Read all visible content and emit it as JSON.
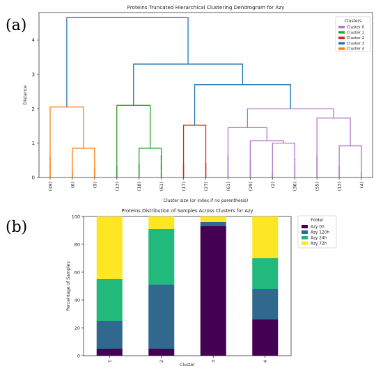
{
  "panel_labels": [
    "(a)",
    "(b)"
  ],
  "chart_data": [
    {
      "type": "dendrogram",
      "title": "Proteins Truncated Hierarchical Clustering Dendrogram for Azy",
      "xlabel": "Cluster size (or index if no parenthesis)",
      "ylabel": "Distance",
      "ylim": [
        0,
        4.8
      ],
      "yticks": [
        0,
        1,
        2,
        3,
        4
      ],
      "leaf_labels": [
        "(49)",
        "(6)",
        "(9)",
        "(13)",
        "(18)",
        "(61)",
        "(17)",
        "(27)",
        "(61)",
        "(29)",
        "(2)",
        "(36)",
        "(55)",
        "(13)",
        "(4)"
      ],
      "legend": {
        "title": "Clusters",
        "placement": "top-right",
        "entries": [
          {
            "name": "Cluster 0",
            "color": "#b277c8"
          },
          {
            "name": "Cluster 1",
            "color": "#2ca02c"
          },
          {
            "name": "Cluster 2",
            "color": "#d62728"
          },
          {
            "name": "Cluster 3",
            "color": "#1f77b4"
          },
          {
            "name": "Cluster 4",
            "color": "#ff7f0e"
          }
        ]
      },
      "links": [
        {
          "children": [
            1,
            2
          ],
          "height": 0.85,
          "cluster": "Cluster 4"
        },
        {
          "children": [
            0,
            "L0"
          ],
          "height": 2.05,
          "cluster": "Cluster 4"
        },
        {
          "children": [
            4,
            5
          ],
          "height": 0.85,
          "cluster": "Cluster 1"
        },
        {
          "children": [
            3,
            "L2"
          ],
          "height": 2.1,
          "cluster": "Cluster 1"
        },
        {
          "children": [
            6,
            7
          ],
          "height": 1.52,
          "cluster": "Cluster 2"
        },
        {
          "children": [
            10,
            11
          ],
          "height": 1.0,
          "cluster": "Cluster 0"
        },
        {
          "children": [
            9,
            "L5"
          ],
          "height": 1.07,
          "cluster": "Cluster 0"
        },
        {
          "children": [
            8,
            "L6"
          ],
          "height": 1.45,
          "cluster": "Cluster 0"
        },
        {
          "children": [
            13,
            14
          ],
          "height": 0.92,
          "cluster": "Cluster 0"
        },
        {
          "children": [
            12,
            "L8"
          ],
          "height": 1.73,
          "cluster": "Cluster 0"
        },
        {
          "children": [
            "L7",
            "L9"
          ],
          "height": 2.0,
          "cluster": "Cluster 0"
        },
        {
          "children": [
            "L4",
            "L10"
          ],
          "height": 2.7,
          "cluster": "Cluster 3"
        },
        {
          "children": [
            "L3",
            "L11"
          ],
          "height": 3.3,
          "cluster": "Cluster 3"
        },
        {
          "children": [
            "L1",
            "L12"
          ],
          "height": 4.65,
          "cluster": "Cluster 3"
        }
      ]
    },
    {
      "type": "bar",
      "stacked": true,
      "title": "Proteins Distribution of Samples Across Clusters for Azy",
      "xlabel": "Cluster",
      "ylabel": "Percentage of Samples",
      "ylim": [
        0,
        100
      ],
      "yticks": [
        0,
        20,
        40,
        60,
        80,
        100
      ],
      "categories": [
        "1",
        "2",
        "3",
        "4"
      ],
      "series": [
        {
          "name": "Azy 0h",
          "color": "#440154",
          "values": [
            5,
            5,
            93,
            26
          ]
        },
        {
          "name": "Azy 120h",
          "color": "#31688e",
          "values": [
            20,
            46,
            3,
            22
          ]
        },
        {
          "name": "Azy 24h",
          "color": "#21b97c",
          "values": [
            30,
            40,
            0,
            22
          ]
        },
        {
          "name": "Azy 72h",
          "color": "#fde725",
          "values": [
            45,
            9,
            4,
            30
          ]
        }
      ],
      "legend": {
        "title": "Folder",
        "placement": "outside-right"
      }
    }
  ]
}
